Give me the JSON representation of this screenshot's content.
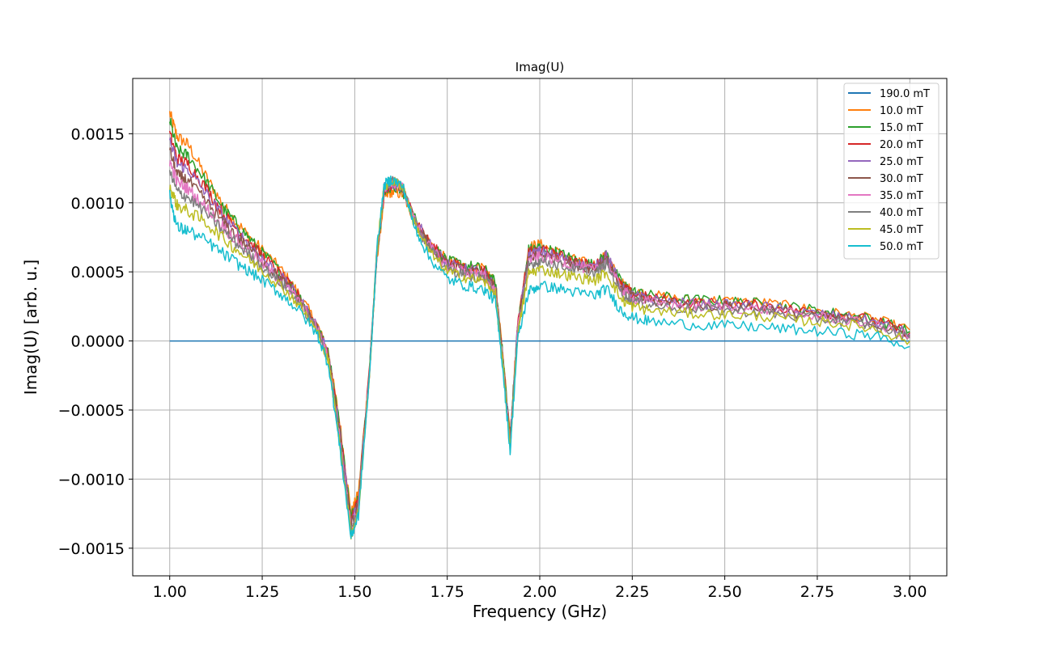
{
  "chart_data": {
    "type": "line",
    "title": "Imag(U)",
    "xlabel": "Frequency (GHz)",
    "ylabel": "Imag(U) [arb. u.]",
    "xlim": [
      0.9,
      3.1
    ],
    "ylim": [
      -0.0017,
      0.0019
    ],
    "xticks": [
      1.0,
      1.25,
      1.5,
      1.75,
      2.0,
      2.25,
      2.5,
      2.75,
      3.0
    ],
    "xtick_labels": [
      "1.00",
      "1.25",
      "1.50",
      "1.75",
      "2.00",
      "2.25",
      "2.50",
      "2.75",
      "3.00"
    ],
    "yticks": [
      0.0015,
      0.001,
      0.0005,
      0.0,
      -0.0005,
      -0.001,
      -0.0015
    ],
    "ytick_labels": [
      "0.0015",
      "0.0010",
      "0.0005",
      "0.0000",
      "−0.0005",
      "−0.0010",
      "−0.0015"
    ],
    "grid": true,
    "legend_position": "top-right",
    "x": [
      1.0,
      1.02,
      1.05,
      1.1,
      1.15,
      1.2,
      1.25,
      1.3,
      1.35,
      1.4,
      1.43,
      1.46,
      1.49,
      1.51,
      1.54,
      1.56,
      1.58,
      1.6,
      1.63,
      1.66,
      1.7,
      1.75,
      1.8,
      1.85,
      1.88,
      1.9,
      1.92,
      1.94,
      1.97,
      2.0,
      2.05,
      2.1,
      2.15,
      2.18,
      2.22,
      2.25,
      2.3,
      2.4,
      2.5,
      2.6,
      2.7,
      2.8,
      2.9,
      3.0
    ],
    "series": [
      {
        "name": "190.0 mT",
        "color": "#1f77b4",
        "values": [
          0,
          0,
          0,
          0,
          0,
          0,
          0,
          0,
          0,
          0,
          0,
          0,
          0,
          0,
          0,
          0,
          0,
          0,
          0,
          0,
          0,
          0,
          0,
          0,
          0,
          0,
          0,
          0,
          0,
          0,
          0,
          0,
          0,
          0,
          0,
          0,
          0,
          0,
          0,
          0,
          0,
          0,
          0,
          0
        ]
      },
      {
        "name": "10.0 mT",
        "color": "#ff7f0e",
        "values": [
          0.00165,
          0.00148,
          0.00142,
          0.00118,
          0.00096,
          0.0008,
          0.00066,
          0.00052,
          0.00034,
          0.00011,
          -0.0001,
          -0.0006,
          -0.00125,
          -0.0011,
          -0.0002,
          0.0006,
          0.00104,
          0.00108,
          0.00106,
          0.00088,
          0.00072,
          0.00058,
          0.00054,
          0.00052,
          0.00042,
          -0.0001,
          -0.00068,
          0.0001,
          0.00068,
          0.0007,
          0.00064,
          0.00058,
          0.00055,
          0.00062,
          0.00042,
          0.00036,
          0.00033,
          0.0003,
          0.00029,
          0.00028,
          0.00024,
          0.0002,
          0.00016,
          8e-05
        ]
      },
      {
        "name": "15.0 mT",
        "color": "#2ca02c",
        "values": [
          0.0016,
          0.00138,
          0.00134,
          0.00115,
          0.00094,
          0.00079,
          0.00064,
          0.0005,
          0.00033,
          0.0001,
          -0.0001,
          -0.00062,
          -0.00128,
          -0.00112,
          -0.0002,
          0.00062,
          0.00108,
          0.00112,
          0.00108,
          0.0009,
          0.00072,
          0.00058,
          0.00055,
          0.00052,
          0.00042,
          -0.0001,
          -0.0007,
          0.0001,
          0.00066,
          0.00068,
          0.00064,
          0.00058,
          0.00055,
          0.00063,
          0.00042,
          0.00036,
          0.00033,
          0.0003,
          0.00029,
          0.00027,
          0.00024,
          0.0002,
          0.00016,
          7e-05
        ]
      },
      {
        "name": "20.0 mT",
        "color": "#d62728",
        "values": [
          0.0015,
          0.00132,
          0.00128,
          0.0011,
          0.0009,
          0.00076,
          0.00062,
          0.00048,
          0.00032,
          0.0001,
          -0.00012,
          -0.00064,
          -0.0013,
          -0.00114,
          -0.0002,
          0.00063,
          0.00109,
          0.00113,
          0.00109,
          0.0009,
          0.00072,
          0.00057,
          0.00053,
          0.0005,
          0.0004,
          -0.00012,
          -0.00072,
          0.0001,
          0.00064,
          0.00066,
          0.00062,
          0.00057,
          0.00054,
          0.00062,
          0.0004,
          0.00034,
          0.00031,
          0.00028,
          0.00027,
          0.00026,
          0.00022,
          0.00019,
          0.00015,
          6e-05
        ]
      },
      {
        "name": "25.0 mT",
        "color": "#9467bd",
        "values": [
          0.00145,
          0.00128,
          0.00124,
          0.00106,
          0.00088,
          0.00074,
          0.0006,
          0.00047,
          0.00031,
          0.0001,
          -0.00012,
          -0.00066,
          -0.00132,
          -0.00116,
          -0.00021,
          0.00064,
          0.0011,
          0.00114,
          0.0011,
          0.0009,
          0.00071,
          0.00056,
          0.00052,
          0.00049,
          0.00039,
          -0.00013,
          -0.00074,
          9e-05,
          0.00062,
          0.00065,
          0.00061,
          0.00056,
          0.00053,
          0.00063,
          0.00039,
          0.00033,
          0.0003,
          0.00027,
          0.00026,
          0.00025,
          0.00021,
          0.00018,
          0.00014,
          5e-05
        ]
      },
      {
        "name": "30.0 mT",
        "color": "#8c564b",
        "values": [
          0.00138,
          0.0012,
          0.00116,
          0.001,
          0.00084,
          0.00071,
          0.00058,
          0.00045,
          0.0003,
          9e-05,
          -0.00013,
          -0.00068,
          -0.00134,
          -0.00118,
          -0.00022,
          0.00064,
          0.0011,
          0.00115,
          0.00111,
          0.00089,
          0.0007,
          0.00055,
          0.00051,
          0.00048,
          0.00038,
          -0.00014,
          -0.00075,
          8e-05,
          0.0006,
          0.00063,
          0.0006,
          0.00055,
          0.00052,
          0.0006,
          0.00038,
          0.00032,
          0.00029,
          0.00026,
          0.00025,
          0.00024,
          0.0002,
          0.00017,
          0.00013,
          4e-05
        ]
      },
      {
        "name": "35.0 mT",
        "color": "#e377c2",
        "values": [
          0.0013,
          0.00115,
          0.0011,
          0.00096,
          0.00081,
          0.00068,
          0.00056,
          0.00043,
          0.00029,
          8e-05,
          -0.00014,
          -0.0007,
          -0.00136,
          -0.0012,
          -0.00022,
          0.00065,
          0.00111,
          0.00115,
          0.00111,
          0.00088,
          0.00069,
          0.00054,
          0.0005,
          0.00047,
          0.00037,
          -0.00015,
          -0.00076,
          7e-05,
          0.00058,
          0.00061,
          0.00058,
          0.00054,
          0.00051,
          0.00058,
          0.00037,
          0.00031,
          0.00028,
          0.00025,
          0.00024,
          0.00023,
          0.00019,
          0.00016,
          0.00012,
          3e-05
        ]
      },
      {
        "name": "40.0 mT",
        "color": "#7f7f7f",
        "values": [
          0.00122,
          0.00108,
          0.00104,
          0.00092,
          0.00078,
          0.00066,
          0.00054,
          0.00042,
          0.00028,
          7e-05,
          -0.00015,
          -0.00072,
          -0.00138,
          -0.00122,
          -0.00023,
          0.00066,
          0.00112,
          0.00116,
          0.00112,
          0.00087,
          0.00067,
          0.00052,
          0.00048,
          0.00045,
          0.00036,
          -0.00016,
          -0.00077,
          6e-05,
          0.00055,
          0.00058,
          0.00055,
          0.00051,
          0.00049,
          0.00056,
          0.00035,
          0.00029,
          0.00026,
          0.00023,
          0.00022,
          0.00021,
          0.00017,
          0.00015,
          0.00011,
          2e-05
        ]
      },
      {
        "name": "45.0 mT",
        "color": "#bcbd22",
        "values": [
          0.00112,
          0.00098,
          0.00094,
          0.00085,
          0.00073,
          0.00062,
          0.00051,
          0.0004,
          0.00026,
          6e-05,
          -0.00016,
          -0.00075,
          -0.0014,
          -0.00124,
          -0.00024,
          0.00066,
          0.00112,
          0.00116,
          0.00112,
          0.00086,
          0.00065,
          0.0005,
          0.00046,
          0.00043,
          0.00034,
          -0.00017,
          -0.00078,
          4e-05,
          0.00049,
          0.00052,
          0.00049,
          0.00046,
          0.00044,
          0.0005,
          0.0003,
          0.00025,
          0.00022,
          0.0002,
          0.00019,
          0.00018,
          0.00015,
          0.00013,
          9e-05,
          0.0
        ]
      },
      {
        "name": "50.0 mT",
        "color": "#17becf",
        "values": [
          0.00105,
          0.00082,
          0.0008,
          0.00072,
          0.00062,
          0.00053,
          0.00044,
          0.00034,
          0.00022,
          4e-05,
          -0.00018,
          -0.00078,
          -0.00142,
          -0.00126,
          -0.00025,
          0.00067,
          0.00113,
          0.00117,
          0.00112,
          0.00084,
          0.00061,
          0.00045,
          0.0004,
          0.00037,
          0.00029,
          -0.00019,
          -0.0008,
          0.0,
          0.00036,
          0.0004,
          0.00038,
          0.00035,
          0.00033,
          0.00038,
          0.00022,
          0.00017,
          0.00014,
          0.00012,
          0.00011,
          0.0001,
          8e-05,
          6e-05,
          4e-05,
          -4e-05
        ]
      }
    ]
  }
}
